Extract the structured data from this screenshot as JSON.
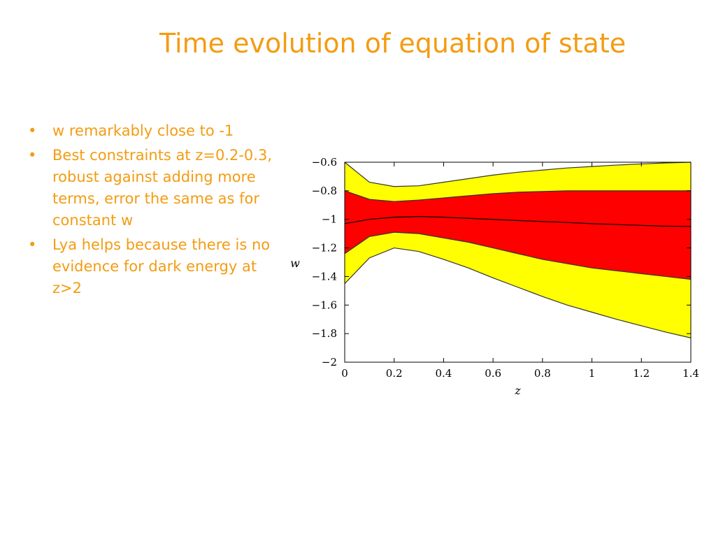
{
  "slide": {
    "title": "Time evolution of equation of state",
    "bullets": [
      " w remarkably close to -1",
      "Best constraints  at z=0.2-0.3, robust against adding more terms, error the same as for constant w",
      "Lya helps because there is no evidence for dark energy at z>2"
    ],
    "bullet_symbol": "•"
  },
  "chart_data": {
    "type": "area",
    "xlabel": "z",
    "ylabel": "w",
    "xlim": [
      0,
      1.4
    ],
    "ylim": [
      -2,
      -0.6
    ],
    "x_ticks": [
      "0",
      "0.2",
      "0.4",
      "0.6",
      "0.8",
      "1",
      "1.2",
      "1.4"
    ],
    "y_ticks": [
      "−0.6",
      "−0.8",
      "−1",
      "−1.2",
      "−1.4",
      "−1.6",
      "−1.8",
      "−2"
    ],
    "x": [
      0,
      0.1,
      0.2,
      0.3,
      0.4,
      0.5,
      0.6,
      0.7,
      0.8,
      0.9,
      1.0,
      1.1,
      1.2,
      1.3,
      1.4
    ],
    "series": [
      {
        "color": "#ffff00",
        "upper": [
          -0.6,
          -0.74,
          -0.77,
          -0.765,
          -0.74,
          -0.715,
          -0.69,
          -0.67,
          -0.655,
          -0.64,
          -0.63,
          -0.62,
          -0.612,
          -0.605,
          -0.6
        ],
        "lower": [
          -1.45,
          -1.27,
          -1.2,
          -1.225,
          -1.28,
          -1.34,
          -1.41,
          -1.475,
          -1.54,
          -1.6,
          -1.65,
          -1.7,
          -1.745,
          -1.79,
          -1.83
        ]
      },
      {
        "color": "#ff0000",
        "upper": [
          -0.8,
          -0.86,
          -0.875,
          -0.865,
          -0.85,
          -0.835,
          -0.82,
          -0.81,
          -0.805,
          -0.8,
          -0.8,
          -0.8,
          -0.8,
          -0.8,
          -0.8
        ],
        "lower": [
          -1.24,
          -1.12,
          -1.09,
          -1.1,
          -1.13,
          -1.16,
          -1.2,
          -1.24,
          -1.28,
          -1.31,
          -1.34,
          -1.36,
          -1.38,
          -1.4,
          -1.42
        ]
      },
      {
        "color": "#000000",
        "line": [
          -1.03,
          -1.0,
          -0.985,
          -0.98,
          -0.985,
          -0.993,
          -1.0,
          -1.008,
          -1.015,
          -1.022,
          -1.03,
          -1.036,
          -1.042,
          -1.048,
          -1.05
        ]
      }
    ],
    "grid": false,
    "legend": "none"
  }
}
